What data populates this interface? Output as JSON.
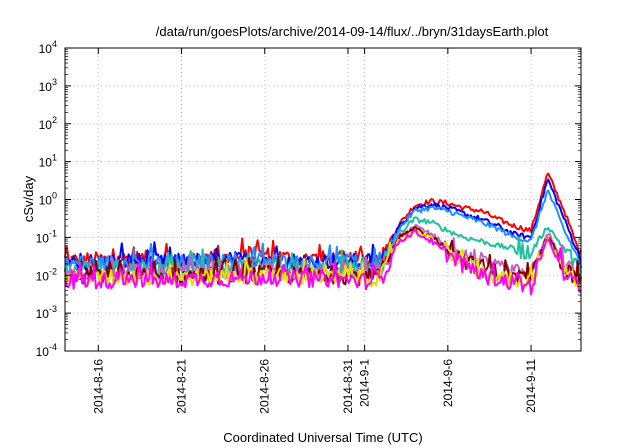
{
  "chart_data": {
    "type": "line",
    "title": "/data/run/goesPlots/archive/2014-09-14/flux/../bryn/31daysEarth.plot",
    "xlabel": "Coordinated Universal Time (UTC)",
    "ylabel": "cSv/day",
    "yscale": "log",
    "ylim": [
      0.0001,
      10000
    ],
    "xlim": [
      "2014-08-14",
      "2014-09-14"
    ],
    "grid": true,
    "y_ticks": [
      {
        "base": "10",
        "exp": "-4",
        "value": 0.0001
      },
      {
        "base": "10",
        "exp": "-3",
        "value": 0.001
      },
      {
        "base": "10",
        "exp": "-2",
        "value": 0.01
      },
      {
        "base": "10",
        "exp": "-1",
        "value": 0.1
      },
      {
        "base": "10",
        "exp": "0",
        "value": 1
      },
      {
        "base": "10",
        "exp": "1",
        "value": 10
      },
      {
        "base": "10",
        "exp": "2",
        "value": 100
      },
      {
        "base": "10",
        "exp": "3",
        "value": 1000
      },
      {
        "base": "10",
        "exp": "4",
        "value": 10000
      }
    ],
    "x_ticks": [
      {
        "date": "2014-08-16",
        "lines": [
          "2014-8-16"
        ]
      },
      {
        "date": "2014-08-21",
        "lines": [
          "2014-8-21"
        ]
      },
      {
        "date": "2014-08-26",
        "lines": [
          "2014-8-26"
        ]
      },
      {
        "date": "2014-08-31",
        "lines": [
          "2014-8-31"
        ]
      },
      {
        "date": "2014-09-01",
        "lines": [
          "2014-9-1"
        ]
      },
      {
        "date": "2014-09-06",
        "lines": [
          "2014-9-6"
        ]
      },
      {
        "date": "2014-09-11",
        "lines": [
          "2014-9-11"
        ]
      }
    ],
    "x": [
      "2014-08-14",
      "2014-08-16",
      "2014-08-18",
      "2014-08-20",
      "2014-08-22",
      "2014-08-24",
      "2014-08-26",
      "2014-08-28",
      "2014-08-30",
      "2014-09-01",
      "2014-09-02",
      "2014-09-03",
      "2014-09-04",
      "2014-09-05",
      "2014-09-06",
      "2014-09-07",
      "2014-09-08",
      "2014-09-09",
      "2014-09-10",
      "2014-09-11",
      "2014-09-12",
      "2014-09-13",
      "2014-09-14"
    ],
    "series": [
      {
        "color": "#ff0000",
        "values": [
          0.025,
          0.025,
          0.028,
          0.025,
          0.027,
          0.028,
          0.035,
          0.026,
          0.027,
          0.025,
          0.03,
          0.2,
          0.7,
          0.9,
          0.8,
          0.6,
          0.5,
          0.3,
          0.2,
          0.15,
          5,
          0.5,
          0.03
        ]
      },
      {
        "color": "#0000ff",
        "values": [
          0.022,
          0.022,
          0.024,
          0.022,
          0.024,
          0.025,
          0.028,
          0.023,
          0.024,
          0.022,
          0.027,
          0.17,
          0.6,
          0.75,
          0.6,
          0.42,
          0.3,
          0.2,
          0.12,
          0.1,
          3.5,
          0.3,
          0.025
        ]
      },
      {
        "color": "#1e90ff",
        "values": [
          0.02,
          0.02,
          0.022,
          0.02,
          0.022,
          0.023,
          0.025,
          0.021,
          0.022,
          0.02,
          0.025,
          0.15,
          0.5,
          0.6,
          0.5,
          0.35,
          0.25,
          0.17,
          0.1,
          0.08,
          1.8,
          0.15,
          0.02
        ]
      },
      {
        "color": "#20c0a0",
        "values": [
          0.014,
          0.014,
          0.015,
          0.014,
          0.015,
          0.016,
          0.016,
          0.015,
          0.015,
          0.014,
          0.016,
          0.12,
          0.3,
          0.25,
          0.15,
          0.1,
          0.08,
          0.06,
          0.05,
          0.04,
          0.2,
          0.05,
          0.012
        ]
      },
      {
        "color": "#c060c0",
        "values": [
          0.011,
          0.011,
          0.012,
          0.011,
          0.012,
          0.012,
          0.013,
          0.012,
          0.012,
          0.011,
          0.012,
          0.1,
          0.2,
          0.12,
          0.06,
          0.03,
          0.02,
          0.015,
          0.012,
          0.01,
          0.15,
          0.02,
          0.008
        ]
      },
      {
        "color": "#800000",
        "values": [
          0.009,
          0.009,
          0.01,
          0.009,
          0.01,
          0.01,
          0.011,
          0.01,
          0.01,
          0.009,
          0.01,
          0.09,
          0.18,
          0.1,
          0.05,
          0.025,
          0.015,
          0.012,
          0.009,
          0.008,
          0.12,
          0.015,
          0.007
        ]
      },
      {
        "color": "#e0e000",
        "values": [
          0.008,
          0.008,
          0.009,
          0.008,
          0.009,
          0.009,
          0.01,
          0.009,
          0.009,
          0.008,
          0.009,
          0.08,
          0.15,
          0.09,
          0.04,
          0.02,
          0.012,
          0.009,
          0.007,
          0.006,
          0.1,
          0.012,
          0.006
        ]
      },
      {
        "color": "#ff00ff",
        "values": [
          0.007,
          0.007,
          0.008,
          0.007,
          0.008,
          0.008,
          0.009,
          0.008,
          0.008,
          0.007,
          0.008,
          0.075,
          0.14,
          0.08,
          0.035,
          0.018,
          0.01,
          0.008,
          0.006,
          0.005,
          0.1,
          0.01,
          0.005
        ]
      }
    ]
  }
}
